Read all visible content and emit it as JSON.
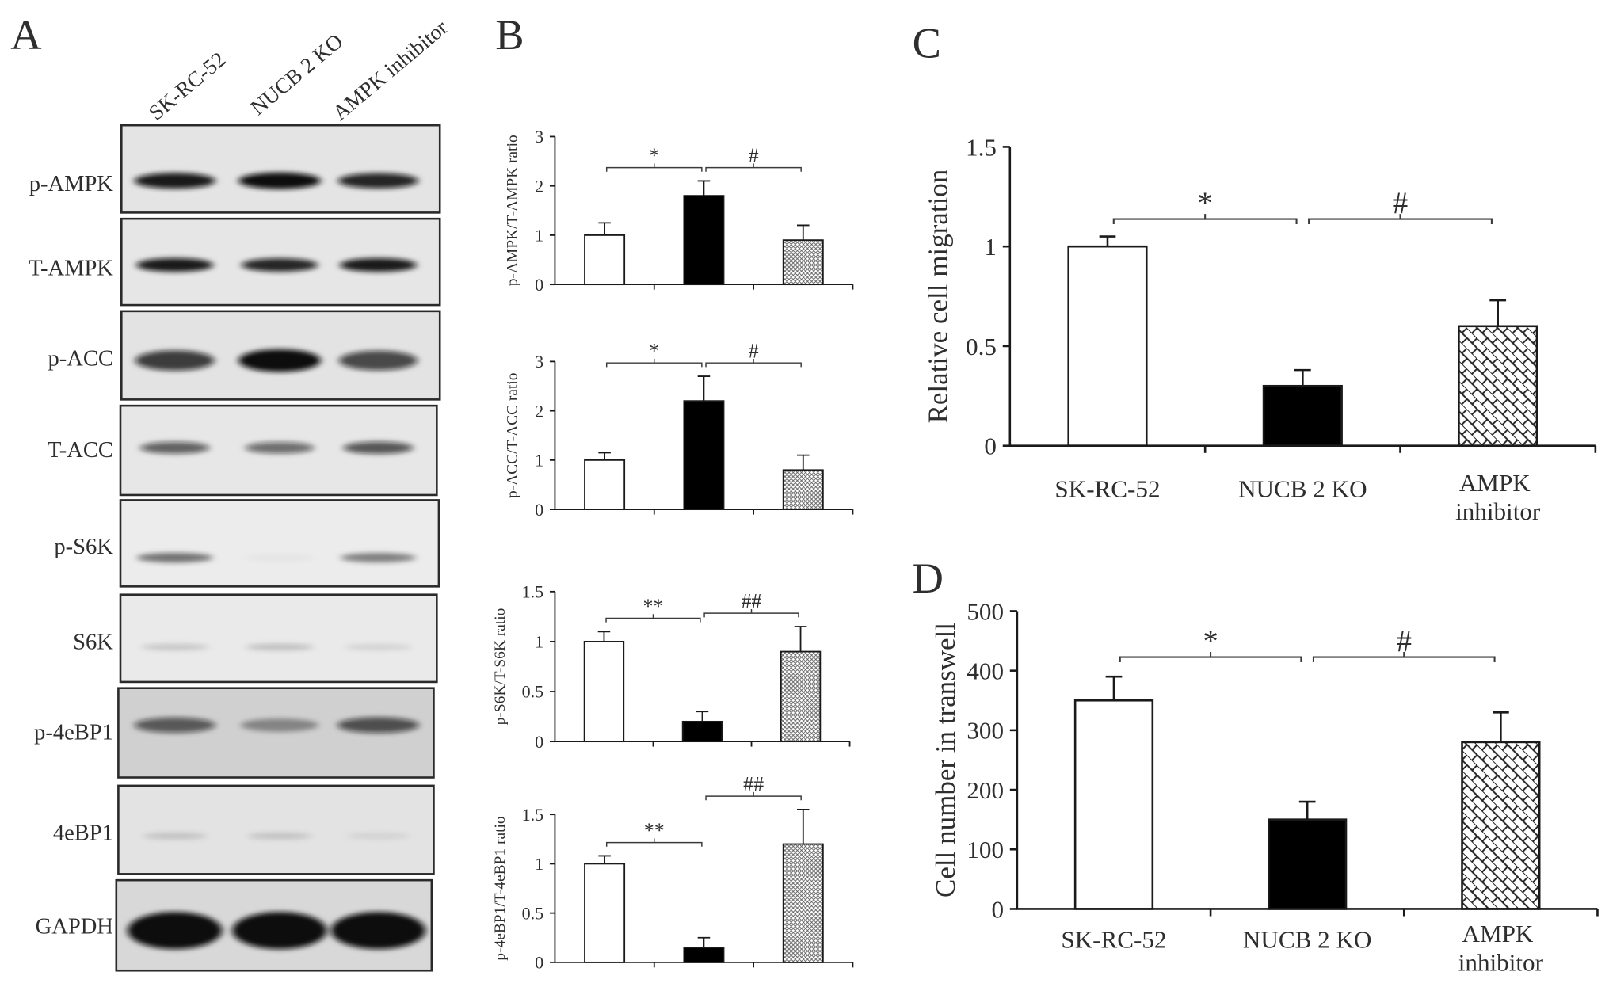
{
  "panels": {
    "A": {
      "label": "A",
      "lanes": [
        "SK-RC-52",
        "NUCB 2 KO",
        "AMPK inhibitor"
      ],
      "rows": [
        {
          "label": "p-AMPK",
          "band_intensity": [
            0.9,
            1.0,
            0.85
          ]
        },
        {
          "label": "T-AMPK",
          "band_intensity": [
            0.9,
            0.85,
            0.9
          ]
        },
        {
          "label": "p-ACC",
          "band_intensity": [
            0.75,
            1.0,
            0.7
          ]
        },
        {
          "label": "T-ACC",
          "band_intensity": [
            0.6,
            0.55,
            0.65
          ]
        },
        {
          "label": "p-S6K",
          "band_intensity": [
            0.5,
            0.03,
            0.45
          ]
        },
        {
          "label": "S6K",
          "band_intensity": [
            0.15,
            0.18,
            0.1
          ]
        },
        {
          "label": "p-4eBP1",
          "band_intensity": [
            0.6,
            0.35,
            0.65
          ]
        },
        {
          "label": "4eBP1",
          "band_intensity": [
            0.15,
            0.15,
            0.08
          ]
        },
        {
          "label": "GAPDH",
          "band_intensity": [
            1.0,
            1.0,
            1.0
          ]
        }
      ]
    },
    "B": {
      "label": "B"
    },
    "C": {
      "label": "C"
    },
    "D": {
      "label": "D"
    }
  },
  "chart_data": [
    {
      "type": "bar",
      "ylabel": "p-AMPK/T-AMPK ratio",
      "ylim": [
        0,
        3
      ],
      "yticks": [
        0,
        1,
        2,
        3
      ],
      "values": [
        1.0,
        1.8,
        0.9
      ],
      "error": [
        0.25,
        0.3,
        0.3
      ],
      "significance": [
        {
          "label": "*",
          "bars": [
            0,
            1
          ]
        },
        {
          "label": "#",
          "bars": [
            1,
            2
          ]
        }
      ]
    },
    {
      "type": "bar",
      "ylabel": "p-ACC/T-ACC ratio",
      "ylim": [
        0,
        3
      ],
      "yticks": [
        0,
        1,
        2,
        3
      ],
      "values": [
        1.0,
        2.2,
        0.8
      ],
      "error": [
        0.15,
        0.5,
        0.3
      ],
      "significance": [
        {
          "label": "*",
          "bars": [
            0,
            1
          ]
        },
        {
          "label": "#",
          "bars": [
            1,
            2
          ]
        }
      ]
    },
    {
      "type": "bar",
      "ylabel": "p-S6K/T-S6K ratio",
      "ylim": [
        0,
        1.5
      ],
      "yticks": [
        0,
        0.5,
        1,
        1.5
      ],
      "values": [
        1.0,
        0.2,
        0.9
      ],
      "error": [
        0.1,
        0.1,
        0.25
      ],
      "significance": [
        {
          "label": "**",
          "bars": [
            0,
            1
          ]
        },
        {
          "label": "##",
          "bars": [
            1,
            2
          ]
        }
      ]
    },
    {
      "type": "bar",
      "ylabel": "p-4eBP1/T-4eBP1 ratio",
      "ylim": [
        0,
        1.5
      ],
      "yticks": [
        0,
        0.5,
        1,
        1.5
      ],
      "values": [
        1.0,
        0.15,
        1.2
      ],
      "error": [
        0.08,
        0.1,
        0.35
      ],
      "significance": [
        {
          "label": "**",
          "bars": [
            0,
            1
          ]
        },
        {
          "label": "##",
          "bars": [
            1,
            2
          ]
        }
      ]
    },
    {
      "type": "bar",
      "ylabel": "Relative cell migration",
      "categories": [
        "SK-RC-52",
        "NUCB 2 KO",
        "AMPK inhibitor"
      ],
      "ylim": [
        0,
        1.5
      ],
      "yticks": [
        0,
        0.5,
        1,
        1.5
      ],
      "values": [
        1.0,
        0.3,
        0.6
      ],
      "error": [
        0.05,
        0.08,
        0.13
      ],
      "significance": [
        {
          "label": "*",
          "bars": [
            0,
            1
          ]
        },
        {
          "label": "#",
          "bars": [
            1,
            2
          ]
        }
      ]
    },
    {
      "type": "bar",
      "ylabel": "Cell number in transwell",
      "categories": [
        "SK-RC-52",
        "NUCB 2 KO",
        "AMPK inhibitor"
      ],
      "ylim": [
        0,
        500
      ],
      "yticks": [
        0,
        100,
        200,
        300,
        400,
        500
      ],
      "values": [
        350,
        150,
        280
      ],
      "error": [
        40,
        30,
        50
      ],
      "significance": [
        {
          "label": "*",
          "bars": [
            0,
            1
          ]
        },
        {
          "label": "#",
          "bars": [
            1,
            2
          ]
        }
      ]
    }
  ]
}
